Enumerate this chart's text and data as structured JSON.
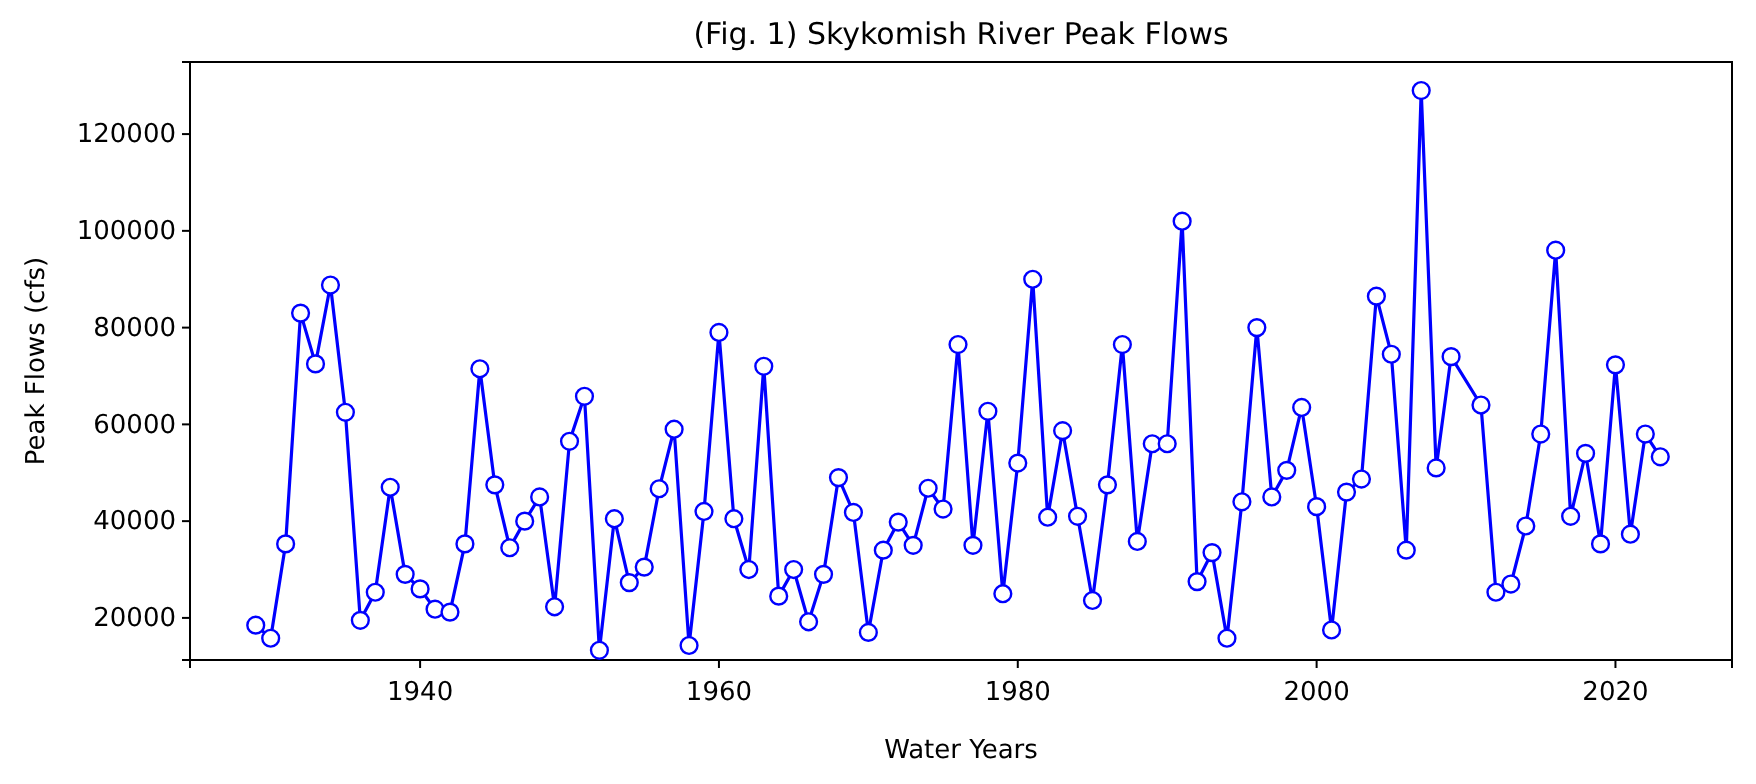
{
  "chart_data": {
    "type": "line",
    "title": "(Fig. 1) Skykomish River Peak Flows",
    "xlabel": "Water Years",
    "ylabel": "Peak Flows (cfs)",
    "x": [
      1929,
      1930,
      1931,
      1932,
      1933,
      1934,
      1935,
      1936,
      1937,
      1938,
      1939,
      1940,
      1941,
      1942,
      1943,
      1944,
      1945,
      1946,
      1947,
      1948,
      1949,
      1950,
      1951,
      1952,
      1953,
      1954,
      1955,
      1956,
      1957,
      1958,
      1959,
      1960,
      1961,
      1962,
      1963,
      1964,
      1965,
      1966,
      1967,
      1968,
      1969,
      1970,
      1971,
      1972,
      1973,
      1974,
      1975,
      1976,
      1977,
      1978,
      1979,
      1980,
      1981,
      1982,
      1983,
      1984,
      1985,
      1986,
      1987,
      1988,
      1989,
      1990,
      1991,
      1992,
      1993,
      1994,
      1995,
      1996,
      1997,
      1998,
      1999,
      2000,
      2001,
      2002,
      2003,
      2004,
      2005,
      2006,
      2007,
      2008,
      2009,
      2011,
      2012,
      2013,
      2014,
      2015,
      2016,
      2017,
      2018,
      2019,
      2020,
      2021,
      2022,
      2023
    ],
    "series": [
      {
        "color": "#0000ff",
        "values": [
          18500,
          15800,
          35300,
          83000,
          72500,
          88800,
          62500,
          19500,
          25300,
          47000,
          29000,
          26000,
          21800,
          21200,
          35300,
          71500,
          47500,
          34500,
          40000,
          45000,
          22300,
          56500,
          65800,
          13300,
          40500,
          27300,
          30500,
          46700,
          59000,
          14300,
          42000,
          79000,
          40500,
          30000,
          72000,
          24500,
          30000,
          19200,
          29000,
          49000,
          41800,
          17000,
          34000,
          39800,
          35000,
          46800,
          42500,
          76500,
          35000,
          62700,
          25000,
          52000,
          90000,
          40800,
          58700,
          41000,
          23600,
          47500,
          76500,
          35800,
          56000,
          56000,
          102000,
          27500,
          33500,
          15800,
          44000,
          80000,
          45000,
          50500,
          63500,
          43000,
          17500,
          46000,
          48700,
          86500,
          74500,
          34000,
          129000,
          51000,
          74000,
          64000,
          25300,
          27000,
          39000,
          58000,
          96000,
          41000,
          54000,
          35300,
          72300,
          37300,
          58000,
          53300
        ]
      }
    ],
    "xlim": [
      1924.6,
      2027.8
    ],
    "xticks": [
      1940,
      1960,
      1980,
      2000,
      2020
    ],
    "ylim": [
      11300,
      134900
    ],
    "yticks": [
      20000,
      40000,
      60000,
      80000,
      100000,
      120000
    ],
    "marker": "circle",
    "line_style": "solid"
  }
}
